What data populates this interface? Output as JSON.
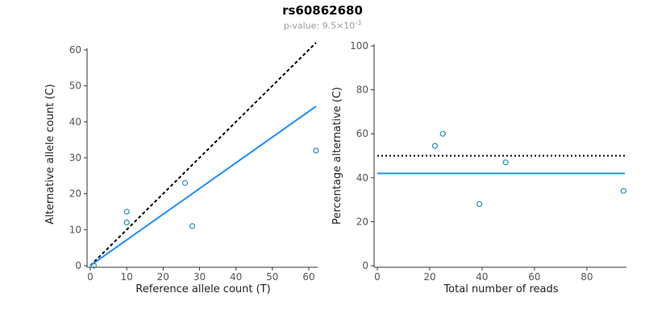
{
  "header": {
    "title": "rs60862680",
    "p_prefix": "p-value: 9.5×10",
    "p_exponent": "-3"
  },
  "colors": {
    "point": "#2b8cbe",
    "blue_line": "#1e8fff",
    "black_line": "#000000",
    "axis": "#333333",
    "tick_label": "#555555",
    "axis_label": "#222222"
  },
  "chart_data": [
    {
      "type": "scatter",
      "title": "",
      "xlabel": "Reference allele count (T)",
      "ylabel": "Alternative allele count (C)",
      "xlim": [
        0,
        62
      ],
      "ylim": [
        0,
        62
      ],
      "xticks": [
        0,
        10,
        20,
        30,
        40,
        50,
        60
      ],
      "yticks": [
        0,
        10,
        20,
        30,
        40,
        50,
        60
      ],
      "grid": false,
      "points": [
        [
          1,
          0
        ],
        [
          10,
          12
        ],
        [
          10,
          15
        ],
        [
          26,
          23
        ],
        [
          28,
          11
        ],
        [
          62,
          32
        ]
      ],
      "lines": [
        {
          "name": "identity-line",
          "style": "dashed",
          "color": "#000000",
          "x": [
            0,
            62
          ],
          "y": [
            0,
            62
          ]
        },
        {
          "name": "fit-line",
          "style": "solid",
          "color": "#1e8fff",
          "x": [
            0,
            62
          ],
          "y": [
            0,
            44.3
          ]
        }
      ]
    },
    {
      "type": "scatter",
      "title": "",
      "xlabel": "Total number of reads",
      "ylabel": "Percentage alternative (C)",
      "xlim": [
        0,
        94.5
      ],
      "ylim": [
        0,
        100
      ],
      "xticks": [
        0,
        20,
        40,
        60,
        80
      ],
      "yticks": [
        0,
        20,
        40,
        60,
        80,
        100
      ],
      "grid": false,
      "points": [
        [
          22,
          54.5
        ],
        [
          25,
          60
        ],
        [
          39,
          28
        ],
        [
          49,
          47
        ],
        [
          94,
          34
        ]
      ],
      "lines": [
        {
          "name": "expected-percentage-line",
          "style": "dotted",
          "color": "#000000",
          "x": [
            0,
            94.5
          ],
          "y": [
            50,
            50
          ]
        },
        {
          "name": "mean-percentage-line",
          "style": "solid",
          "color": "#1e8fff",
          "x": [
            0,
            94.5
          ],
          "y": [
            42,
            42
          ]
        }
      ]
    }
  ]
}
